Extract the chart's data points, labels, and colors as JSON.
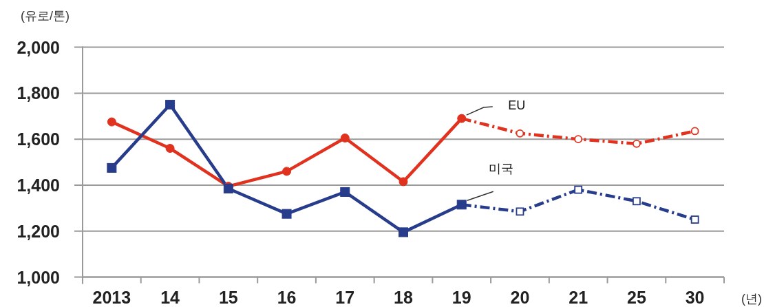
{
  "chart_data": {
    "type": "line",
    "xlabel": "(년)",
    "ylabel": "(유로/톤)",
    "categories": [
      "2013",
      "14",
      "15",
      "16",
      "17",
      "18",
      "19",
      "20",
      "21",
      "25",
      "30"
    ],
    "ylim": [
      1000,
      2000
    ],
    "yticks": [
      {
        "value": 1000,
        "label": "1,000"
      },
      {
        "value": 1200,
        "label": "1,200"
      },
      {
        "value": 1400,
        "label": "1,400"
      },
      {
        "value": 1600,
        "label": "1,600"
      },
      {
        "value": 1800,
        "label": "1,800"
      },
      {
        "value": 2000,
        "label": "2,000"
      }
    ],
    "grid": "y",
    "series": [
      {
        "name": "EU",
        "color": "#e0321e",
        "marker": "circle",
        "line_style": "solid",
        "values": [
          1675,
          1560,
          1395,
          1460,
          1605,
          1415,
          1690,
          null,
          null,
          null,
          null
        ]
      },
      {
        "color": "#e0321e",
        "marker": "circle",
        "line_style": "dashed",
        "values": [
          null,
          null,
          null,
          null,
          null,
          null,
          1690,
          1625,
          1600,
          1580,
          1635
        ]
      },
      {
        "name": "미국",
        "color": "#283c8c",
        "marker": "square",
        "line_style": "solid",
        "values": [
          1475,
          1750,
          1385,
          1275,
          1370,
          1195,
          1315,
          null,
          null,
          null,
          null
        ]
      },
      {
        "color": "#283c8c",
        "marker": "square",
        "line_style": "dashed",
        "values": [
          null,
          null,
          null,
          null,
          null,
          null,
          1315,
          1285,
          1380,
          1330,
          1250
        ]
      }
    ]
  }
}
